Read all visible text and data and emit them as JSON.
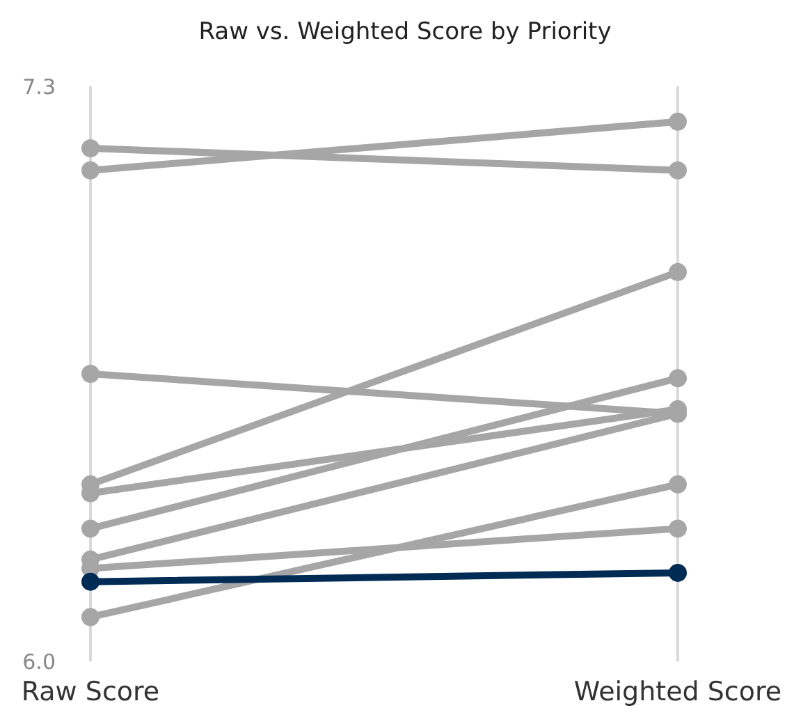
{
  "chart_data": {
    "type": "line",
    "title": "Raw vs. Weighted Score by Priority",
    "categories": [
      "Raw Score",
      "Weighted Score"
    ],
    "ylim": [
      6.0,
      7.3
    ],
    "yticks": [
      {
        "value": 6,
        "label": "6.0"
      },
      7.3
    ],
    "grid": "x",
    "marker": "circle",
    "line_style": "solid",
    "series": [
      {
        "color": "#a6a6a6",
        "values": [
          7.16,
          7.11
        ]
      },
      {
        "color": "#a6a6a6",
        "values": [
          7.11,
          7.22
        ]
      },
      {
        "color": "#a6a6a6",
        "values": [
          6.65,
          6.56
        ]
      },
      {
        "color": "#a6a6a6",
        "values": [
          6.4,
          6.88
        ]
      },
      {
        "color": "#a6a6a6",
        "values": [
          6.38,
          6.57
        ]
      },
      {
        "color": "#a6a6a6",
        "values": [
          6.3,
          6.64
        ]
      },
      {
        "color": "#a6a6a6",
        "values": [
          6.23,
          6.56
        ]
      },
      {
        "color": "#a6a6a6",
        "values": [
          6.21,
          6.3
        ]
      },
      {
        "color": "#a6a6a6",
        "values": [
          6.1,
          6.4
        ]
      },
      {
        "color": "#002b55",
        "values": [
          6.18,
          6.2
        ]
      }
    ]
  }
}
